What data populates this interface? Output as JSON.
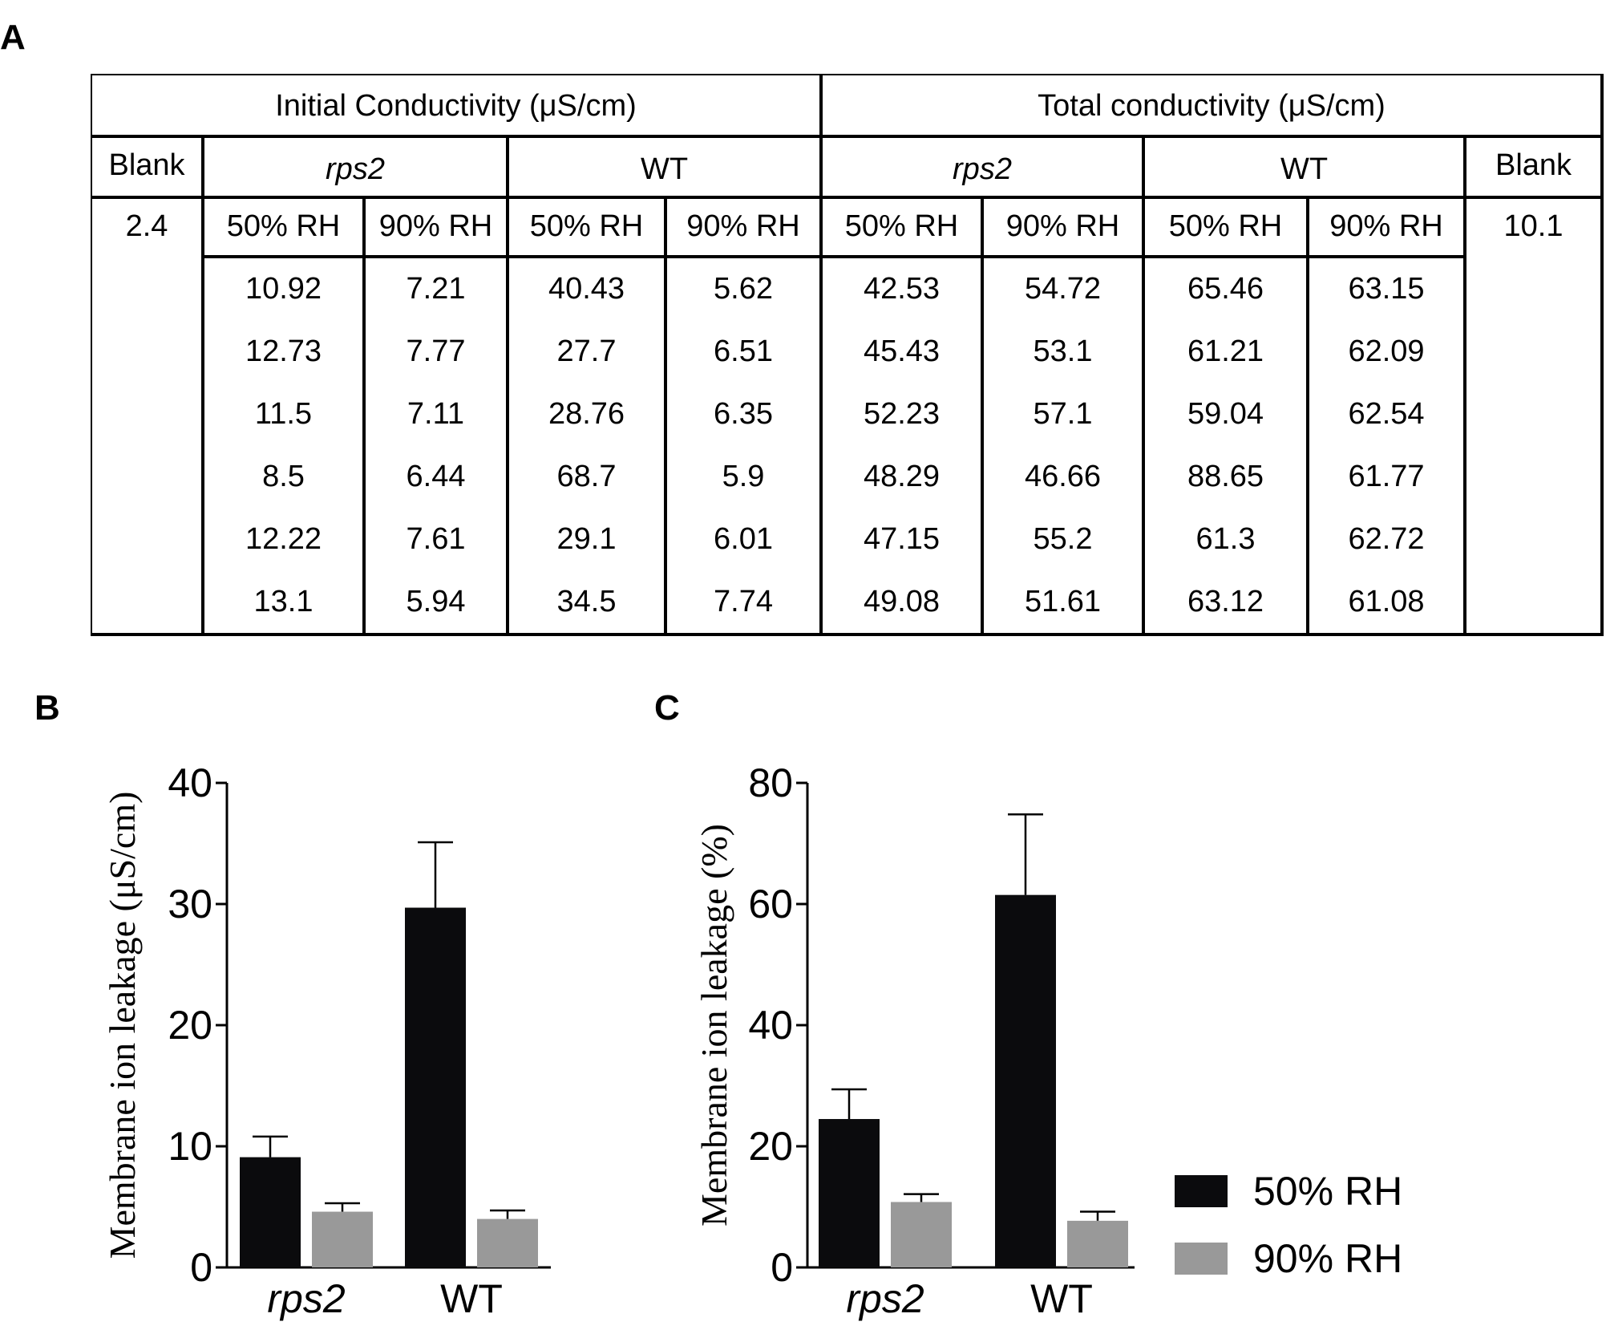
{
  "panels": {
    "a": "A",
    "b": "B",
    "c": "C"
  },
  "colors": {
    "rh50": "#0b0b0d",
    "rh90": "#999999",
    "line": "#000000"
  },
  "table": {
    "group_headers": [
      "Initial Conductivity (μS/cm)",
      "Total conductivity (μS/cm)"
    ],
    "blank_label": "Blank",
    "genotypes": [
      "rps2",
      "WT",
      "rps2",
      "WT"
    ],
    "conditions": [
      "50% RH",
      "90% RH",
      "50% RH",
      "90% RH",
      "50% RH",
      "90% RH",
      "50% RH",
      "90% RH"
    ],
    "blank_initial": "2.4",
    "blank_total": "10.1",
    "rows": [
      [
        "10.92",
        "7.21",
        "40.43",
        "5.62",
        "42.53",
        "54.72",
        "65.46",
        "63.15"
      ],
      [
        "12.73",
        "7.77",
        "27.7",
        "6.51",
        "45.43",
        "53.1",
        "61.21",
        "62.09"
      ],
      [
        "11.5",
        "7.11",
        "28.76",
        "6.35",
        "52.23",
        "57.1",
        "59.04",
        "62.54"
      ],
      [
        "8.5",
        "6.44",
        "68.7",
        "5.9",
        "48.29",
        "46.66",
        "88.65",
        "61.77"
      ],
      [
        "12.22",
        "7.61",
        "29.1",
        "6.01",
        "47.15",
        "55.2",
        "61.3",
        "62.72"
      ],
      [
        "13.1",
        "5.94",
        "34.5",
        "7.74",
        "49.08",
        "51.61",
        "63.12",
        "61.08"
      ]
    ]
  },
  "chart_data": [
    {
      "panel": "B",
      "type": "bar",
      "categories": [
        "rps2",
        "WT"
      ],
      "ylabel": "Membrane ion leakage (μS/cm)",
      "ylim": [
        0,
        40
      ],
      "yticks": [
        "0",
        "10",
        "20",
        "30",
        "40"
      ],
      "series": [
        {
          "name": "50% RH",
          "values": [
            9.1,
            29.7
          ],
          "errors": [
            1.7,
            5.4
          ]
        },
        {
          "name": "90% RH",
          "values": [
            4.6,
            4.0
          ],
          "errors": [
            0.7,
            0.7
          ]
        }
      ]
    },
    {
      "panel": "C",
      "type": "bar",
      "categories": [
        "rps2",
        "WT"
      ],
      "ylabel": "Membrane ion leakage (%)",
      "ylim": [
        0,
        80
      ],
      "yticks": [
        "0",
        "20",
        "40",
        "60",
        "80"
      ],
      "series": [
        {
          "name": "50% RH",
          "values": [
            24.5,
            61.5
          ],
          "errors": [
            4.9,
            13.3
          ]
        },
        {
          "name": "90% RH",
          "values": [
            10.8,
            7.7
          ],
          "errors": [
            1.3,
            1.5
          ]
        }
      ]
    }
  ],
  "legend": [
    "50% RH",
    "90% RH"
  ]
}
